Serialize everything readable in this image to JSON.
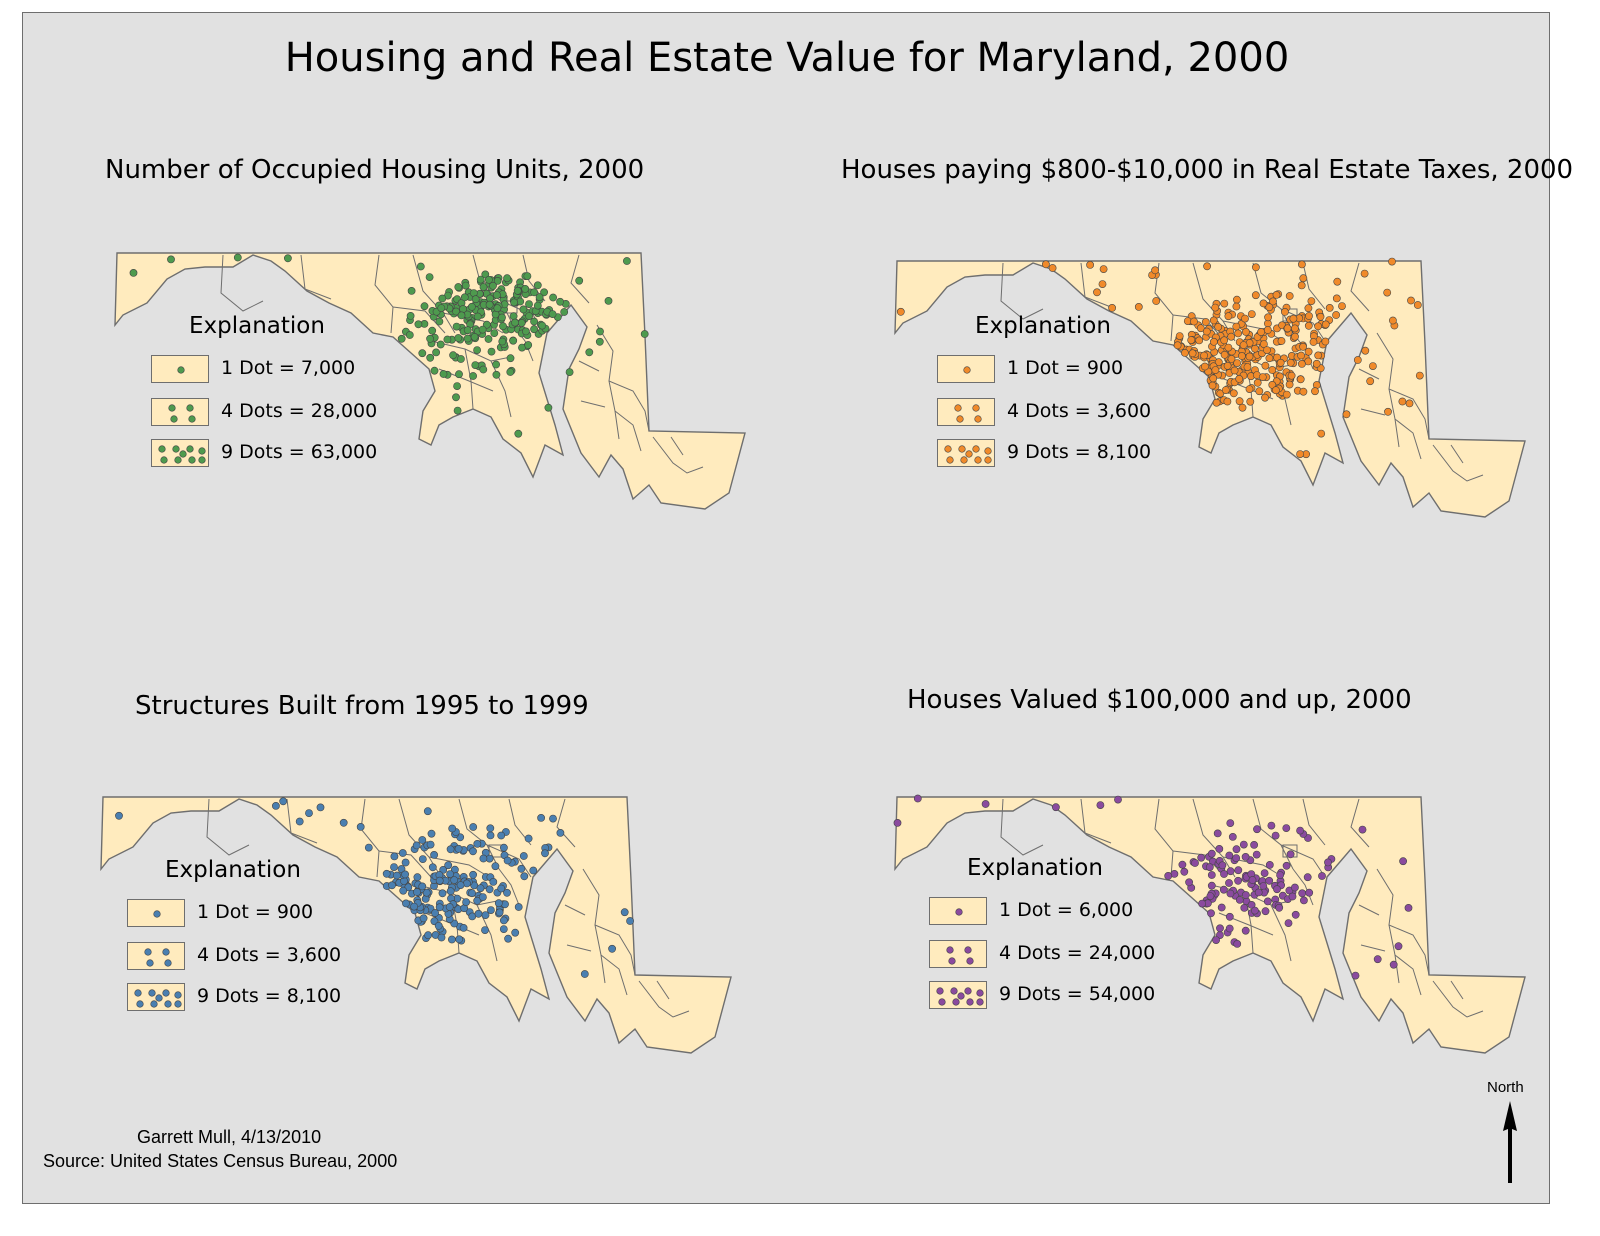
{
  "title": "Housing and Real Estate Value for Maryland, 2000",
  "colors": {
    "background": "#e1e1e1",
    "land_fill": "#ffebbe",
    "county_line": "#6e6e6e",
    "green_dot": "#4e9a4e",
    "orange_dot": "#f08a2a",
    "blue_dot": "#4a7fb0",
    "purple_dot": "#8a4a9e"
  },
  "maps": [
    {
      "id": "housing-units",
      "title": "Number of Occupied Housing Units, 2000",
      "dot_color": "#4e9a4e",
      "dot_count": 260,
      "cluster": "baltimore",
      "legend": {
        "heading": "Explanation",
        "items": [
          {
            "dots": 1,
            "label": "1 Dot = 7,000"
          },
          {
            "dots": 4,
            "label": "4 Dots = 28,000"
          },
          {
            "dots": 9,
            "label": "9 Dots = 63,000"
          }
        ]
      }
    },
    {
      "id": "real-estate-taxes",
      "title": "Houses paying $800-$10,000 in Real Estate Taxes, 2000",
      "dot_color": "#f08a2a",
      "dot_count": 340,
      "cluster": "central",
      "legend": {
        "heading": "Explanation",
        "items": [
          {
            "dots": 1,
            "label": "1 Dot = 900"
          },
          {
            "dots": 4,
            "label": "4 Dots = 3,600"
          },
          {
            "dots": 9,
            "label": "9 Dots = 8,100"
          }
        ]
      }
    },
    {
      "id": "structures-built",
      "title": "Structures Built from 1995 to 1999",
      "dot_color": "#4a7fb0",
      "dot_count": 210,
      "cluster": "central",
      "legend": {
        "heading": "Explanation",
        "items": [
          {
            "dots": 1,
            "label": "1 Dot = 900"
          },
          {
            "dots": 4,
            "label": "4 Dots = 3,600"
          },
          {
            "dots": 9,
            "label": "9 Dots = 8,100"
          }
        ]
      }
    },
    {
      "id": "houses-valued",
      "title": "Houses Valued $100,000 and up, 2000",
      "dot_color": "#8a4a9e",
      "dot_count": 140,
      "cluster": "dc",
      "legend": {
        "heading": "Explanation",
        "items": [
          {
            "dots": 1,
            "label": "1 Dot = 6,000"
          },
          {
            "dots": 4,
            "label": "4 Dots = 24,000"
          },
          {
            "dots": 9,
            "label": "9 Dots = 54,000"
          }
        ]
      }
    }
  ],
  "credits": {
    "author": "Garrett Mull, 4/13/2010",
    "source": "Source: United States Census Bureau, 2000"
  },
  "north_arrow": {
    "label": "North"
  }
}
